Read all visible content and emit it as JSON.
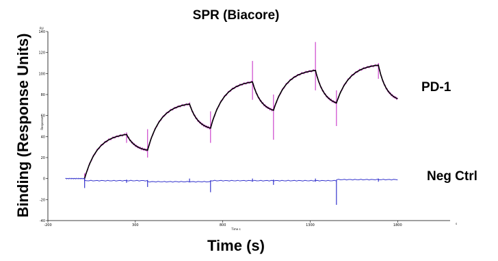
{
  "chart_data": {
    "type": "line",
    "title": "SPR (Biacore)",
    "xlabel": "Time (s)",
    "ylabel": "Binding (Response Units)",
    "inner_xlabel": "Time s",
    "inner_ylabel": "Response",
    "y_unit": "RU",
    "x_unit": "s",
    "xlim": [
      -200,
      2100
    ],
    "ylim": [
      -40,
      140
    ],
    "x_ticks": [
      -200,
      300,
      800,
      1300,
      1800
    ],
    "y_ticks": [
      -40,
      -20,
      0,
      20,
      40,
      60,
      80,
      100,
      120,
      140
    ],
    "grid": false,
    "series": [
      {
        "name": "PD-1",
        "color": "#000000",
        "fit_color": "#cc44cc",
        "baseline": 0,
        "segments": [
          {
            "phase": "association",
            "t_start": 10,
            "t_end": 250,
            "start": 0,
            "end": 42
          },
          {
            "phase": "dissociation",
            "t_start": 250,
            "t_end": 370,
            "start": 42,
            "end": 27
          },
          {
            "phase": "association",
            "t_start": 370,
            "t_end": 610,
            "start": 27,
            "end": 71
          },
          {
            "phase": "dissociation",
            "t_start": 610,
            "t_end": 730,
            "start": 71,
            "end": 48
          },
          {
            "phase": "association",
            "t_start": 730,
            "t_end": 970,
            "start": 48,
            "end": 92
          },
          {
            "phase": "dissociation",
            "t_start": 970,
            "t_end": 1090,
            "start": 92,
            "end": 65
          },
          {
            "phase": "association",
            "t_start": 1090,
            "t_end": 1330,
            "start": 65,
            "end": 103
          },
          {
            "phase": "dissociation",
            "t_start": 1330,
            "t_end": 1450,
            "start": 103,
            "end": 72
          },
          {
            "phase": "association",
            "t_start": 1450,
            "t_end": 1690,
            "start": 72,
            "end": 108
          },
          {
            "phase": "dissociation",
            "t_start": 1690,
            "t_end": 1800,
            "start": 108,
            "end": 76
          }
        ],
        "spikes": [
          {
            "t": 10,
            "low": -3,
            "high": 5
          },
          {
            "t": 250,
            "low": 34,
            "high": 44
          },
          {
            "t": 370,
            "low": 20,
            "high": 47
          },
          {
            "t": 730,
            "low": 34,
            "high": 64
          },
          {
            "t": 970,
            "low": 75,
            "high": 112
          },
          {
            "t": 1090,
            "low": 37,
            "high": 80
          },
          {
            "t": 1330,
            "low": 84,
            "high": 130
          },
          {
            "t": 1450,
            "low": 50,
            "high": 84
          },
          {
            "t": 1690,
            "low": 95,
            "high": 110
          }
        ]
      },
      {
        "name": "Neg Ctrl",
        "color": "#3333cc",
        "x_start": -100,
        "x_end": 1800,
        "steps": [
          {
            "t_start": -100,
            "t_end": 10,
            "y": 0
          },
          {
            "t_start": 10,
            "t_end": 370,
            "y": -2
          },
          {
            "t_start": 370,
            "t_end": 730,
            "y": -3
          },
          {
            "t_start": 730,
            "t_end": 1090,
            "y": -2
          },
          {
            "t_start": 1090,
            "t_end": 1450,
            "y": -2
          },
          {
            "t_start": 1450,
            "t_end": 1800,
            "y": -1
          }
        ],
        "spikes": [
          {
            "t": 10,
            "low": -9,
            "high": 0
          },
          {
            "t": 250,
            "low": -4,
            "high": -1
          },
          {
            "t": 370,
            "low": -8,
            "high": -2
          },
          {
            "t": 610,
            "low": -3,
            "high": 0
          },
          {
            "t": 730,
            "low": -13,
            "high": -2
          },
          {
            "t": 970,
            "low": -3,
            "high": 0
          },
          {
            "t": 1090,
            "low": -6,
            "high": -1
          },
          {
            "t": 1330,
            "low": -3,
            "high": 0
          },
          {
            "t": 1450,
            "low": -25,
            "high": -2
          },
          {
            "t": 1690,
            "low": -3,
            "high": 0
          }
        ]
      }
    ]
  }
}
